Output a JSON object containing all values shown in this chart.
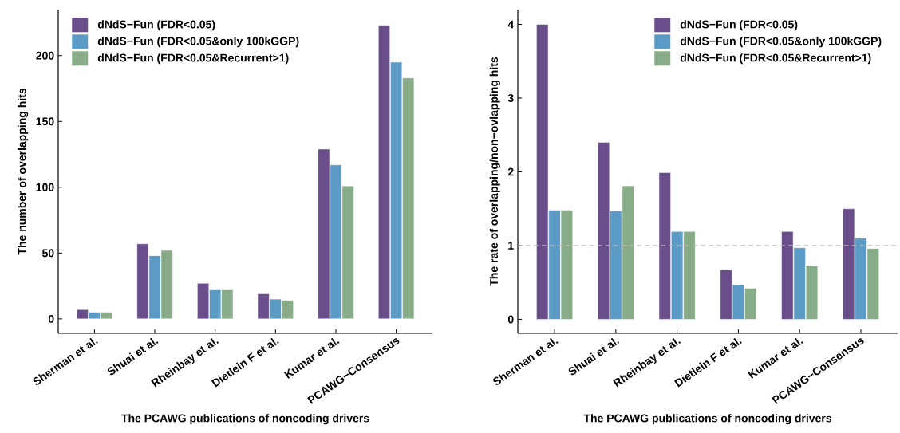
{
  "chart_data": [
    {
      "type": "bar",
      "xlabel": "The PCAWG publications of noncoding drivers",
      "ylabel": "The number of overlapping hits",
      "categories": [
        "Sherman et al.",
        "Shuai et al.",
        "Rheinbay et al.",
        "Dietlein F et al.",
        "Kumar et al.",
        "PCAWG−Consensus"
      ],
      "series": [
        {
          "name": "dNdS−Fun (FDR<0.05)",
          "color": "#6a4e8c",
          "values": [
            7,
            57,
            27,
            19,
            129,
            223
          ]
        },
        {
          "name": "dNdS−Fun (FDR<0.05&only 100kGGP)",
          "color": "#5c9bc6",
          "values": [
            5,
            48,
            22,
            15,
            117,
            195
          ]
        },
        {
          "name": "dNdS−Fun (FDR<0.05&Recurrent>1)",
          "color": "#88ab88",
          "values": [
            5,
            52,
            22,
            14,
            101,
            183
          ]
        }
      ],
      "ylim": [
        -11,
        235
      ],
      "yticks": [
        0,
        50,
        100,
        150,
        200
      ],
      "legend": "top left"
    },
    {
      "type": "bar",
      "xlabel": "The PCAWG publications of noncoding drivers",
      "ylabel": "The rate of overlapping/non−ovlapping hits",
      "categories": [
        "Sherman et al.",
        "Shuai et al.",
        "Rheinbay et al.",
        "Dietlein F et al.",
        "Kumar et al.",
        "PCAWG−Consensus"
      ],
      "series": [
        {
          "name": "dNdS−Fun (FDR<0.05)",
          "color": "#6a4e8c",
          "values": [
            4.0,
            2.4,
            1.99,
            0.67,
            1.19,
            1.5
          ]
        },
        {
          "name": "dNdS−Fun (FDR<0.05&only 100kGGP)",
          "color": "#5c9bc6",
          "values": [
            1.48,
            1.47,
            1.19,
            0.47,
            0.97,
            1.1
          ]
        },
        {
          "name": "dNdS−Fun (FDR<0.05&Recurrent>1)",
          "color": "#88ab88",
          "values": [
            1.48,
            1.81,
            1.19,
            0.42,
            0.73,
            0.96
          ]
        }
      ],
      "ylim": [
        -0.19,
        4.2
      ],
      "yticks": [
        0,
        1,
        2,
        3,
        4
      ],
      "legend": "top right",
      "ref_lines": [
        {
          "axis": "y",
          "value": 1,
          "color": "#bbbbbb",
          "line_style": "dashed"
        }
      ]
    }
  ]
}
